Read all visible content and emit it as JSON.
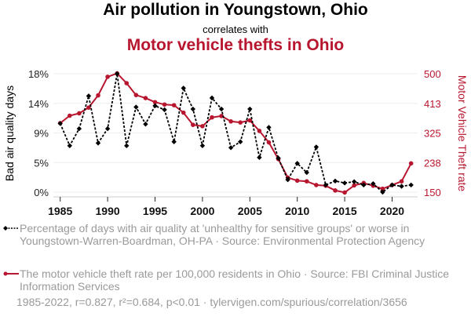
{
  "header": {
    "title": "Air pollution in Youngstown, Ohio",
    "subtitle": "correlates with",
    "title2": "Motor vehicle thefts in Ohio"
  },
  "legend": {
    "series1": "Percentage of days with air quality at 'unhealthy for sensitive groups' or worse in Youngstown-Warren-Boardman, OH-PA · Source: Environmental Protection Agency",
    "series2": "The motor vehicle theft rate per 100,000 residents in Ohio · Source: FBI Criminal Justice Information Services"
  },
  "footer": "1985-2022, r=0.827, r²=0.684, p<0.01 · tylervigen.com/spurious/correlation/3656",
  "colors": {
    "series1": "#000000",
    "series2": "#b8162f",
    "grid": "#eeeeee",
    "legend_text": "#9a9a9a"
  },
  "chart_data": {
    "type": "line",
    "title": "Air pollution in Youngstown, Ohio correlates with Motor vehicle thefts in Ohio",
    "xlabel": "",
    "ylabel_left": "Bad air quality days",
    "ylabel_right": "Motor Vehicle Theft rate",
    "x": [
      1985,
      1986,
      1987,
      1988,
      1989,
      1990,
      1991,
      1992,
      1993,
      1994,
      1995,
      1996,
      1997,
      1998,
      1999,
      2000,
      2001,
      2002,
      2003,
      2004,
      2005,
      2006,
      2007,
      2008,
      2009,
      2010,
      2011,
      2012,
      2013,
      2014,
      2015,
      2016,
      2017,
      2018,
      2019,
      2020,
      2021,
      2022
    ],
    "xlim": [
      1984.1,
      2022.9
    ],
    "xticks": [
      1985,
      1990,
      1995,
      2000,
      2005,
      2010,
      2015,
      2020
    ],
    "y_left": {
      "range": [
        0,
        18.1
      ],
      "ticks": [
        0,
        4.525,
        9.05,
        13.575,
        18.1
      ],
      "tick_labels": [
        "0%",
        "5%",
        "9%",
        "14%",
        "18%"
      ]
    },
    "y_right": {
      "range": [
        150,
        500
      ],
      "ticks": [
        150,
        237.5,
        325,
        412.5,
        500
      ],
      "tick_labels": [
        "150",
        "238",
        "325",
        "413",
        "500"
      ]
    },
    "grid": true,
    "legend_position": "bottom",
    "series": [
      {
        "name": "Percentage of days with air quality at 'unhealthy for sensitive groups' or worse in Youngstown-Warren-Boardman, OH-PA",
        "axis": "left",
        "style": "dotted-black-diamond",
        "values": [
          10.5,
          7.1,
          9.7,
          14.7,
          7.5,
          9.7,
          18.1,
          7.1,
          13.0,
          10.4,
          13.2,
          12.6,
          7.7,
          15.9,
          12.7,
          7.1,
          14.4,
          12.7,
          6.8,
          7.7,
          12.7,
          5.3,
          9.9,
          5.2,
          1.9,
          4.4,
          3.0,
          6.9,
          1.1,
          1.7,
          1.4,
          1.6,
          1.1,
          1.3,
          0.0,
          1.1,
          0.9,
          1.1
        ]
      },
      {
        "name": "The motor vehicle theft rate per 100,000 residents in Ohio",
        "axis": "right",
        "style": "solid-red-dot",
        "values": [
          354,
          376,
          383,
          400,
          436,
          491,
          501,
          472,
          437,
          428,
          416,
          409,
          407,
          385,
          349,
          345,
          371,
          375,
          359,
          356,
          362,
          331,
          297,
          248,
          193,
          184,
          182,
          171,
          169,
          155,
          149,
          170,
          177,
          169,
          160,
          171,
          182,
          235
        ]
      }
    ]
  }
}
